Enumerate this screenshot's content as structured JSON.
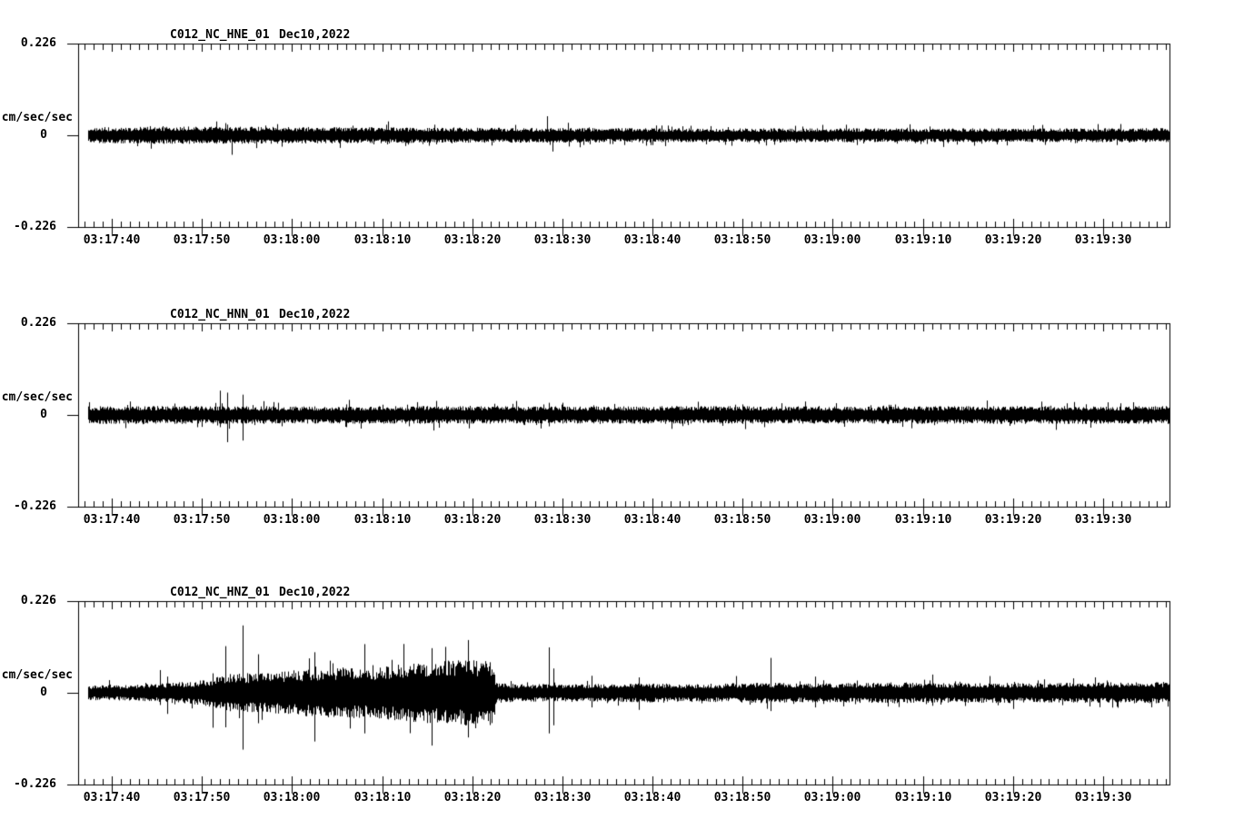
{
  "colors": {
    "background": "#ffffff",
    "ink": "#000000"
  },
  "chart_data": [
    {
      "type": "line",
      "chart_kind": "seismogram-trace",
      "station_label": "C012_NC_HNE_01",
      "date_label": "Dec10,2022",
      "ylabel": "cm/sec/sec",
      "ylim": [
        -0.226,
        0.226
      ],
      "y_tick_labels": [
        "0.226",
        "0",
        "-0.226"
      ],
      "x_tick_labels": [
        "03:17:40",
        "03:17:50",
        "03:18:00",
        "03:18:10",
        "03:18:20",
        "03:18:30",
        "03:18:40",
        "03:18:50",
        "03:19:00",
        "03:19:10",
        "03:19:20",
        "03:19:30"
      ],
      "minor_tick_interval_s": 1,
      "major_tick_interval_s": 10,
      "seed": 3,
      "time_origin_note": "seconds after 03:17:00",
      "envelope": [
        [
          36.3,
          0.019
        ],
        [
          45,
          0.021
        ],
        [
          55,
          0.021
        ],
        [
          65,
          0.02
        ],
        [
          75,
          0.019
        ],
        [
          90,
          0.018
        ],
        [
          105,
          0.017
        ],
        [
          125,
          0.017
        ],
        [
          145,
          0.017
        ],
        [
          157.4,
          0.018
        ]
      ],
      "spikes": [
        [
          52.6,
          0.03,
          0.02
        ],
        [
          53.3,
          0.016,
          0.048
        ],
        [
          57.0,
          0.024,
          0.018
        ],
        [
          70.5,
          0.026,
          0.014
        ],
        [
          88.3,
          0.047,
          0.018
        ],
        [
          88.9,
          0.015,
          0.04
        ],
        [
          101.0,
          0.024,
          0.014
        ],
        [
          121.5,
          0.026,
          0.016
        ]
      ]
    },
    {
      "type": "line",
      "chart_kind": "seismogram-trace",
      "station_label": "C012_NC_HNN_01",
      "date_label": "Dec10,2022",
      "ylabel": "cm/sec/sec",
      "ylim": [
        -0.226,
        0.226
      ],
      "y_tick_labels": [
        "0.226",
        "0",
        "-0.226"
      ],
      "x_tick_labels": [
        "03:17:40",
        "03:17:50",
        "03:18:00",
        "03:18:10",
        "03:18:20",
        "03:18:30",
        "03:18:40",
        "03:18:50",
        "03:19:00",
        "03:19:10",
        "03:19:20",
        "03:19:30"
      ],
      "minor_tick_interval_s": 1,
      "major_tick_interval_s": 10,
      "seed": 7,
      "time_origin_note": "seconds after 03:17:00",
      "envelope": [
        [
          36.3,
          0.022
        ],
        [
          50,
          0.022
        ],
        [
          60,
          0.021
        ],
        [
          75,
          0.022
        ],
        [
          90,
          0.021
        ],
        [
          105,
          0.022
        ],
        [
          120,
          0.021
        ],
        [
          140,
          0.022
        ],
        [
          157.4,
          0.022
        ]
      ],
      "spikes": [
        [
          47.0,
          0.028,
          0.018
        ],
        [
          52.0,
          0.06,
          0.03
        ],
        [
          52.8,
          0.055,
          0.067
        ],
        [
          54.5,
          0.05,
          0.063
        ],
        [
          56.8,
          0.034,
          0.022
        ],
        [
          58.5,
          0.03,
          0.02
        ],
        [
          66.0,
          0.026,
          0.03
        ],
        [
          88.5,
          0.03,
          0.028
        ],
        [
          110.0,
          0.026,
          0.022
        ]
      ]
    },
    {
      "type": "line",
      "chart_kind": "seismogram-trace",
      "station_label": "C012_NC_HNZ_01",
      "date_label": "Dec10,2022",
      "ylabel": "cm/sec/sec",
      "ylim": [
        -0.226,
        0.226
      ],
      "y_tick_labels": [
        "0.226",
        "0",
        "-0.226"
      ],
      "x_tick_labels": [
        "03:17:40",
        "03:17:50",
        "03:18:00",
        "03:18:10",
        "03:18:20",
        "03:18:30",
        "03:18:40",
        "03:18:50",
        "03:19:00",
        "03:19:10",
        "03:19:20",
        "03:19:30"
      ],
      "minor_tick_interval_s": 1,
      "major_tick_interval_s": 10,
      "seed": 13,
      "time_origin_note": "seconds after 03:17:00",
      "envelope": [
        [
          36.3,
          0.018
        ],
        [
          42,
          0.019
        ],
        [
          45,
          0.022
        ],
        [
          47,
          0.026
        ],
        [
          49,
          0.028
        ],
        [
          51,
          0.034
        ],
        [
          52,
          0.042
        ],
        [
          54,
          0.05
        ],
        [
          56,
          0.047
        ],
        [
          58,
          0.051
        ],
        [
          60,
          0.056
        ],
        [
          63,
          0.06
        ],
        [
          66,
          0.063
        ],
        [
          69,
          0.061
        ],
        [
          71,
          0.068
        ],
        [
          74,
          0.073
        ],
        [
          77,
          0.079
        ],
        [
          80,
          0.081
        ],
        [
          82.3,
          0.082
        ],
        [
          82.6,
          0.025
        ],
        [
          85,
          0.022
        ],
        [
          90,
          0.021
        ],
        [
          95,
          0.022
        ],
        [
          100,
          0.024
        ],
        [
          104,
          0.022
        ],
        [
          108,
          0.023
        ],
        [
          112,
          0.026
        ],
        [
          116,
          0.023
        ],
        [
          120,
          0.024
        ],
        [
          126,
          0.026
        ],
        [
          132,
          0.024
        ],
        [
          138,
          0.025
        ],
        [
          144,
          0.024
        ],
        [
          150,
          0.026
        ],
        [
          157.4,
          0.026
        ]
      ],
      "spikes": [
        [
          45.3,
          0.056,
          0.03
        ],
        [
          46.2,
          0.04,
          0.052
        ],
        [
          51.2,
          0.048,
          0.086
        ],
        [
          52.6,
          0.115,
          0.085
        ],
        [
          54.5,
          0.166,
          0.14
        ],
        [
          56.2,
          0.095,
          0.075
        ],
        [
          62.5,
          0.1,
          0.12
        ],
        [
          68.0,
          0.12,
          0.1
        ],
        [
          75.5,
          0.11,
          0.13
        ],
        [
          79.5,
          0.13,
          0.11
        ],
        [
          88.5,
          0.112,
          0.1
        ],
        [
          89.0,
          0.06,
          0.08
        ],
        [
          93.2,
          0.042,
          0.036
        ],
        [
          98.5,
          0.038,
          0.042
        ],
        [
          113.1,
          0.086,
          0.045
        ],
        [
          118.0,
          0.04,
          0.036
        ],
        [
          131.0,
          0.045,
          0.032
        ]
      ]
    }
  ]
}
